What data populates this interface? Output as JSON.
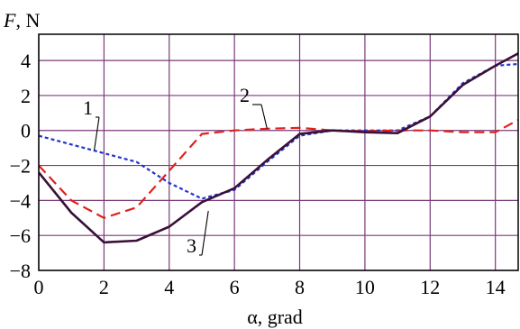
{
  "chart_data": {
    "type": "line",
    "title": "",
    "ylabel_italic": "F",
    "ylabel_rest": ", N",
    "xlabel": "α, grad",
    "xlim": [
      0,
      14.7
    ],
    "ylim": [
      -8,
      5.5
    ],
    "grid": true,
    "xticks": [
      0,
      2,
      4,
      6,
      8,
      10,
      12,
      14
    ],
    "yticks": [
      -8,
      -6,
      -4,
      -2,
      0,
      2,
      4
    ],
    "series": [
      {
        "name": "1",
        "color": "#2233cc",
        "style": "dotted",
        "x": [
          0,
          1,
          2,
          3,
          4,
          5,
          6,
          7,
          8,
          9,
          10,
          11,
          12,
          13,
          14,
          14.7
        ],
        "y": [
          -0.3,
          -0.8,
          -1.3,
          -1.8,
          -3.0,
          -3.9,
          -3.4,
          -1.8,
          -0.3,
          0.0,
          0.0,
          0.0,
          0.8,
          2.7,
          3.7,
          3.8
        ]
      },
      {
        "name": "2",
        "color": "#e0201a",
        "style": "dashed",
        "x": [
          0,
          1,
          2,
          3,
          4,
          5,
          6,
          7,
          8,
          9,
          10,
          11,
          12,
          13,
          14,
          14.7
        ],
        "y": [
          -2.0,
          -4.0,
          -5.0,
          -4.4,
          -2.3,
          -0.2,
          0.0,
          0.1,
          0.15,
          0.0,
          -0.05,
          0.0,
          0.0,
          -0.1,
          -0.1,
          0.6
        ]
      },
      {
        "name": "3",
        "color": "#3a1038",
        "style": "solid",
        "x": [
          0,
          1,
          2,
          3,
          4,
          5,
          6,
          7,
          8,
          9,
          10,
          11,
          12,
          13,
          14,
          14.7
        ],
        "y": [
          -2.4,
          -4.7,
          -6.4,
          -6.3,
          -5.5,
          -4.1,
          -3.3,
          -1.7,
          -0.2,
          0.0,
          -0.1,
          -0.15,
          0.8,
          2.6,
          3.7,
          4.4
        ]
      }
    ]
  }
}
